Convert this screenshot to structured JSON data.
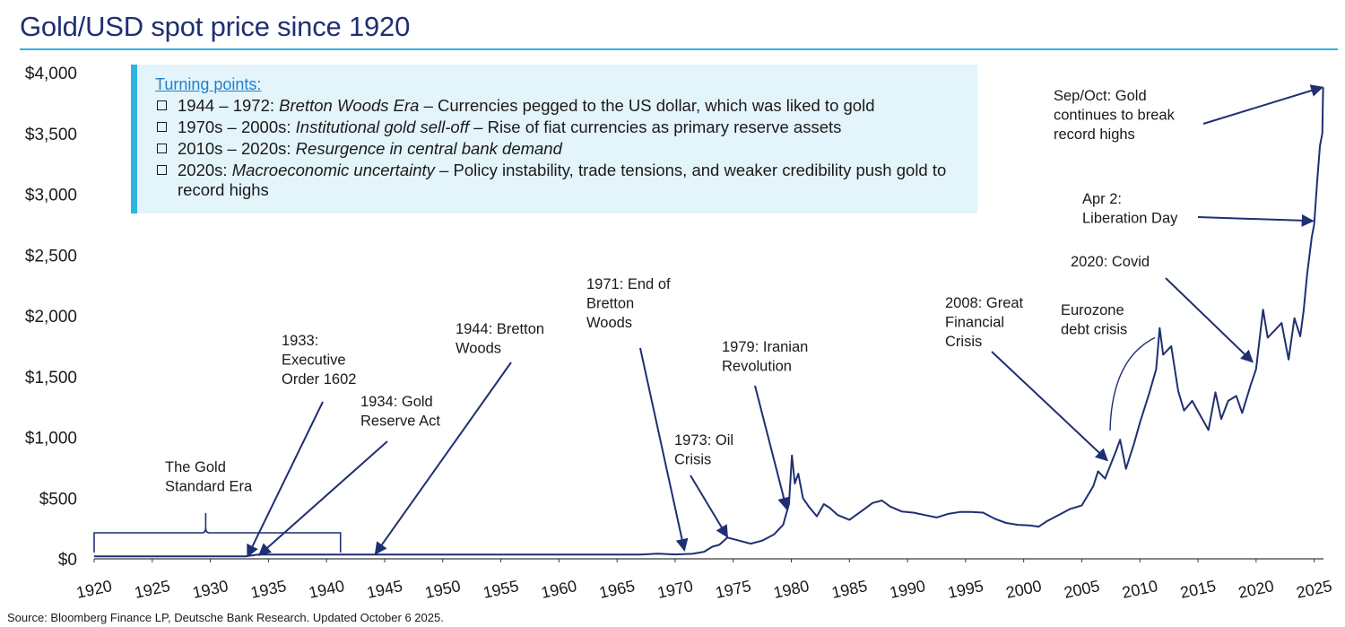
{
  "title": "Gold/USD spot price since 1920",
  "source": "Source: Bloomberg Finance LP, Deutsche Bank Research. Updated October 6 2025.",
  "colors": {
    "title": "#1f2f73",
    "accent": "#2fb3e3",
    "line": "#1f2f73",
    "box_bg": "#e4f4fb",
    "link": "#1f7fd0"
  },
  "turning_points": {
    "heading": "Turning points:",
    "items": [
      {
        "parts": [
          {
            "text": "1944 – 1972: ",
            "italic": false
          },
          {
            "text": "Bretton Woods Era",
            "italic": true
          },
          {
            "text": " – Currencies pegged to the US dollar, which was liked to gold",
            "italic": false
          }
        ]
      },
      {
        "parts": [
          {
            "text": "1970s – 2000s: ",
            "italic": false
          },
          {
            "text": "Institutional gold sell-off",
            "italic": true
          },
          {
            "text": " – Rise of fiat currencies as primary reserve assets",
            "italic": false
          }
        ]
      },
      {
        "parts": [
          {
            "text": "2010s – 2020s: ",
            "italic": false
          },
          {
            "text": "Resurgence in central bank demand",
            "italic": true
          }
        ]
      },
      {
        "parts": [
          {
            "text": "2020s: ",
            "italic": false
          },
          {
            "text": "Macroeconomic uncertainty",
            "italic": true
          },
          {
            "text": " – Policy instability, trade tensions, and weaker credibility push gold to record highs",
            "italic": false
          }
        ]
      }
    ]
  },
  "chart_data": {
    "type": "line",
    "title": "Gold/USD spot price since 1920",
    "xlabel": "",
    "ylabel": "",
    "xlim": [
      1920,
      2025.8
    ],
    "ylim": [
      0,
      4000
    ],
    "y_ticks": [
      0,
      500,
      1000,
      1500,
      2000,
      2500,
      3000,
      3500,
      4000
    ],
    "y_tick_labels": [
      "$0",
      "$500",
      "$1,000",
      "$1,500",
      "$2,000",
      "$2,500",
      "$3,000",
      "$3,500",
      "$4,000"
    ],
    "x_ticks": [
      1920,
      1925,
      1930,
      1935,
      1940,
      1945,
      1950,
      1955,
      1960,
      1965,
      1970,
      1975,
      1980,
      1985,
      1990,
      1995,
      2000,
      2005,
      2010,
      2015,
      2020,
      2025
    ],
    "x_tick_labels": [
      "1920",
      "1925",
      "1930",
      "1935",
      "1940",
      "1945",
      "1950",
      "1955",
      "1960",
      "1965",
      "1970",
      "1975",
      "1980",
      "1985",
      "1990",
      "1995",
      "2000",
      "2005",
      "2010",
      "2015",
      "2020",
      "2025"
    ],
    "grid": false,
    "series": [
      {
        "name": "Gold/USD spot",
        "x": [
          1920,
          1933,
          1934.1,
          1940,
          1950,
          1960,
          1967,
          1968.5,
          1970,
          1971.5,
          1972.5,
          1973.2,
          1973.8,
          1974.5,
          1975.5,
          1976.5,
          1977.5,
          1978.5,
          1979.3,
          1979.8,
          1980.05,
          1980.3,
          1980.6,
          1981,
          1981.5,
          1982.2,
          1982.8,
          1983.3,
          1984,
          1985,
          1986,
          1987,
          1987.8,
          1988.5,
          1989.5,
          1990.5,
          1991.5,
          1992.5,
          1993.5,
          1994.5,
          1995.5,
          1996.5,
          1997.5,
          1998.5,
          1999.5,
          2000.5,
          2001.3,
          2002,
          2003,
          2004,
          2005,
          2006,
          2006.4,
          2007,
          2008,
          2008.3,
          2008.8,
          2009.5,
          2010,
          2010.8,
          2011.4,
          2011.7,
          2012,
          2012.7,
          2013.3,
          2013.8,
          2014.5,
          2015.2,
          2015.9,
          2016.5,
          2017,
          2017.6,
          2018.3,
          2018.8,
          2019.5,
          2020,
          2020.6,
          2021,
          2021.6,
          2022.2,
          2022.8,
          2023.3,
          2023.8,
          2024.1,
          2024.4,
          2024.8,
          2025,
          2025.25,
          2025.5,
          2025.7,
          2025.77
        ],
        "values": [
          20.67,
          20.67,
          35,
          35,
          35,
          35,
          35,
          42,
          36,
          41,
          58,
          100,
          115,
          175,
          150,
          125,
          150,
          200,
          280,
          450,
          850,
          620,
          700,
          500,
          430,
          350,
          450,
          420,
          360,
          320,
          390,
          460,
          480,
          430,
          390,
          380,
          360,
          340,
          370,
          385,
          385,
          380,
          330,
          295,
          280,
          275,
          265,
          310,
          360,
          410,
          440,
          600,
          720,
          660,
          900,
          980,
          740,
          950,
          1120,
          1360,
          1560,
          1900,
          1680,
          1750,
          1380,
          1220,
          1300,
          1180,
          1060,
          1370,
          1150,
          1300,
          1340,
          1200,
          1420,
          1560,
          2050,
          1820,
          1880,
          1940,
          1640,
          1980,
          1830,
          2050,
          2350,
          2650,
          2750,
          3100,
          3400,
          3500,
          3880
        ]
      }
    ],
    "annotations": [
      {
        "text": [
          "The Gold",
          "Standard Era"
        ],
        "type": "bracket",
        "x_range": [
          1920,
          1941.2
        ]
      },
      {
        "text": [
          "1933:",
          "Executive",
          "Order 1602"
        ],
        "target_x": 1933.2,
        "target_y": 20
      },
      {
        "text": [
          "1934: Gold",
          "Reserve Act"
        ],
        "target_x": 1934.2,
        "target_y": 30
      },
      {
        "text": [
          "1944: Bretton",
          "Woods"
        ],
        "target_x": 1944.2,
        "target_y": 40
      },
      {
        "text": [
          "1971: End of",
          "Bretton",
          "Woods"
        ],
        "target_x": 1970.8,
        "target_y": 70
      },
      {
        "text": [
          "1973: Oil",
          "Crisis"
        ],
        "target_x": 1974.5,
        "target_y": 180
      },
      {
        "text": [
          "1979: Iranian",
          "Revolution"
        ],
        "target_x": 1979.6,
        "target_y": 410
      },
      {
        "text": [
          "2008: Great",
          "Financial",
          "Crisis"
        ],
        "target_x": 2007.2,
        "target_y": 810
      },
      {
        "text": [
          "Eurozone",
          "debt crisis"
        ],
        "target_x": 2011.3,
        "target_y": 1820
      },
      {
        "text": [
          "2020: Covid"
        ],
        "target_x": 2019.7,
        "target_y": 1620
      },
      {
        "text": [
          "Apr 2:",
          "Liberation Day"
        ],
        "target_x": 2024.9,
        "target_y": 2780
      },
      {
        "text": [
          "Sep/Oct: Gold",
          "continues to break",
          "record highs"
        ],
        "target_x": 2025.7,
        "target_y": 3880
      }
    ]
  }
}
